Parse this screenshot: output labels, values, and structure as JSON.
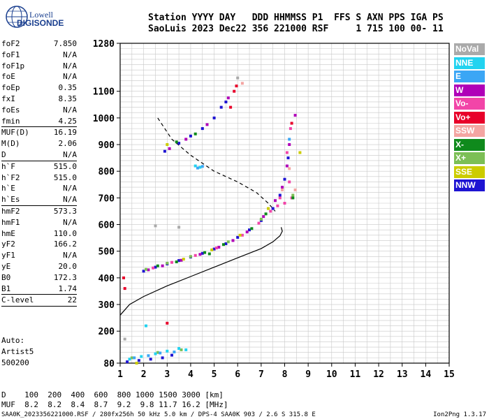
{
  "logo": {
    "line1": "Lowell",
    "line2": "DIGISONDE"
  },
  "header": {
    "row1": "Station YYYY DAY   DDD HHMMSS P1  FFS S AXN PPS IGA PS",
    "row2": "SaoLuis 2023 Dec22 356 221000 RSF     1 715 100 00- 11"
  },
  "params_groups": [
    [
      [
        "foF2",
        "7.850"
      ],
      [
        "foF1",
        "N/A"
      ],
      [
        "foF1p",
        "N/A"
      ],
      [
        "foE",
        "N/A"
      ],
      [
        "foEp",
        "0.35"
      ],
      [
        "fxI",
        "8.35"
      ],
      [
        "foEs",
        "N/A"
      ],
      [
        "fmin",
        "4.25"
      ]
    ],
    [
      [
        "MUF(D)",
        "16.19"
      ],
      [
        "M(D)",
        "2.06"
      ],
      [
        "D",
        "N/A"
      ]
    ],
    [
      [
        "h`F",
        "515.0"
      ],
      [
        "h`F2",
        "515.0"
      ],
      [
        "h`E",
        "N/A"
      ],
      [
        "h`Es",
        "N/A"
      ]
    ],
    [
      [
        "hmF2",
        "573.3"
      ],
      [
        "hmF1",
        "N/A"
      ],
      [
        "hmE",
        "110.0"
      ],
      [
        "yF2",
        "166.2"
      ],
      [
        "yF1",
        "N/A"
      ],
      [
        "yE",
        "20.0"
      ],
      [
        "B0",
        "172.3"
      ],
      [
        "B1",
        "1.74"
      ]
    ],
    [
      [
        "C-level",
        "22"
      ]
    ]
  ],
  "auto": [
    "Auto:",
    "Artist5",
    "500200"
  ],
  "legend": [
    {
      "label": "NoVal",
      "color": "#aaaaaa"
    },
    {
      "label": "NNE",
      "color": "#22d3f0"
    },
    {
      "label": "E",
      "color": "#3ba6f5"
    },
    {
      "label": "W",
      "color": "#b000b8"
    },
    {
      "label": "Vo-",
      "color": "#f245a8"
    },
    {
      "label": "Vo+",
      "color": "#e8002a"
    },
    {
      "label": "SSW",
      "color": "#f4a5a2"
    },
    {
      "label": "X-",
      "color": "#0f8a1c"
    },
    {
      "label": "X+",
      "color": "#7cbf55"
    },
    {
      "label": "SSE",
      "color": "#cccc00"
    },
    {
      "label": "NNW",
      "color": "#1e14d2"
    }
  ],
  "bottom": {
    "row1": "D    100  200  400  600  800 1000 1500 3000 [km]",
    "row2": "MUF  8.2  8.2  8.4  8.7  9.2  9.8 11.7 16.2 [MHz]"
  },
  "footer": "SAA0K_2023356221000.RSF / 280fx256h 50 kHz 5.0 km / DPS-4 SAA0K 903 / 2.6 S 315.8 E",
  "version": "Ion2Png 1.3.17",
  "chart_data": {
    "type": "scatter",
    "xlim": [
      1,
      15
    ],
    "ylim": [
      80,
      1280
    ],
    "x_ticks": [
      1,
      2,
      3,
      4,
      5,
      6,
      7,
      8,
      9,
      10,
      11,
      12,
      13,
      14,
      15
    ],
    "y_ticks": [
      80,
      200,
      300,
      400,
      500,
      600,
      700,
      800,
      900,
      1000,
      1100,
      1280
    ],
    "grid": true,
    "series": [
      {
        "color": "#1e14d2",
        "points": [
          [
            2.0,
            425
          ],
          [
            2.5,
            440
          ],
          [
            3.0,
            452
          ],
          [
            3.5,
            465
          ],
          [
            4.0,
            478
          ],
          [
            4.5,
            492
          ],
          [
            5.0,
            508
          ],
          [
            5.5,
            528
          ],
          [
            6.0,
            552
          ],
          [
            6.5,
            580
          ],
          [
            7.0,
            615
          ],
          [
            7.5,
            660
          ],
          [
            7.8,
            710
          ],
          [
            8.0,
            770
          ],
          [
            8.15,
            850
          ],
          [
            2.9,
            875
          ],
          [
            3.5,
            905
          ],
          [
            4.0,
            932
          ],
          [
            4.5,
            960
          ],
          [
            5.0,
            1000
          ],
          [
            5.3,
            1040
          ],
          [
            5.5,
            1060
          ],
          [
            1.3,
            85
          ],
          [
            1.8,
            90
          ],
          [
            2.3,
            95
          ],
          [
            2.8,
            100
          ],
          [
            3.2,
            110
          ]
        ]
      },
      {
        "color": "#b000b8",
        "points": [
          [
            2.2,
            430
          ],
          [
            2.8,
            445
          ],
          [
            3.6,
            466
          ],
          [
            4.4,
            488
          ],
          [
            5.2,
            515
          ],
          [
            5.8,
            540
          ],
          [
            6.4,
            572
          ],
          [
            7.1,
            630
          ],
          [
            7.6,
            690
          ],
          [
            7.9,
            740
          ],
          [
            8.1,
            820
          ],
          [
            8.2,
            900
          ],
          [
            3.1,
            885
          ],
          [
            3.8,
            920
          ],
          [
            4.7,
            975
          ],
          [
            5.6,
            1075
          ],
          [
            8.45,
            1010
          ]
        ]
      },
      {
        "color": "#f245a8",
        "points": [
          [
            2.4,
            437
          ],
          [
            3.2,
            458
          ],
          [
            4.2,
            484
          ],
          [
            5.1,
            512
          ],
          [
            6.2,
            560
          ],
          [
            6.9,
            605
          ],
          [
            7.4,
            650
          ],
          [
            7.7,
            670
          ],
          [
            8.0,
            680
          ],
          [
            8.2,
            760
          ],
          [
            8.1,
            870
          ],
          [
            8.25,
            960
          ],
          [
            7.8,
            700
          ],
          [
            8.3,
            700
          ]
        ]
      },
      {
        "color": "#0f8a1c",
        "points": [
          [
            2.6,
            445
          ],
          [
            3.4,
            460
          ],
          [
            4.6,
            495
          ],
          [
            5.4,
            525
          ],
          [
            6.6,
            585
          ],
          [
            7.2,
            640
          ],
          [
            3.4,
            910
          ],
          [
            4.2,
            940
          ],
          [
            8.35,
            700
          ],
          [
            4.8,
            490
          ]
        ]
      },
      {
        "color": "#7cbf55",
        "points": [
          [
            2.1,
            432
          ],
          [
            3.0,
            455
          ],
          [
            4.0,
            480
          ],
          [
            5.6,
            535
          ],
          [
            7.0,
            620
          ],
          [
            8.35,
            710
          ],
          [
            1.5,
            100
          ],
          [
            2.6,
            120
          ],
          [
            3.6,
            130
          ]
        ]
      },
      {
        "color": "#cccc00",
        "points": [
          [
            3.7,
            470
          ],
          [
            4.9,
            505
          ],
          [
            6.1,
            560
          ],
          [
            7.3,
            660
          ],
          [
            8.65,
            870
          ],
          [
            3.0,
            900
          ],
          [
            1.7,
            80
          ]
        ]
      },
      {
        "color": "#22d3f0",
        "points": [
          [
            1.4,
            95
          ],
          [
            1.9,
            105
          ],
          [
            2.5,
            115
          ],
          [
            3.0,
            125
          ],
          [
            3.5,
            135
          ],
          [
            3.8,
            130
          ],
          [
            4.2,
            820
          ],
          [
            4.4,
            815
          ],
          [
            2.1,
            220
          ]
        ]
      },
      {
        "color": "#3ba6f5",
        "points": [
          [
            1.6,
            100
          ],
          [
            2.2,
            108
          ],
          [
            2.7,
            118
          ],
          [
            3.3,
            122
          ],
          [
            4.3,
            812
          ],
          [
            4.5,
            818
          ],
          [
            8.2,
            920
          ]
        ]
      },
      {
        "color": "#e8002a",
        "points": [
          [
            1.2,
            360
          ],
          [
            1.15,
            400
          ],
          [
            5.85,
            1100
          ],
          [
            5.95,
            1120
          ],
          [
            3.0,
            230
          ],
          [
            8.3,
            980
          ],
          [
            5.7,
            1040
          ]
        ]
      },
      {
        "color": "#f4a5a2",
        "points": [
          [
            7.9,
            730
          ],
          [
            8.2,
            810
          ],
          [
            8.45,
            730
          ],
          [
            6.2,
            1130
          ]
        ]
      },
      {
        "color": "#aaaaaa",
        "points": [
          [
            1.2,
            170
          ],
          [
            3.5,
            590
          ],
          [
            6.0,
            1150
          ],
          [
            2.5,
            595
          ]
        ]
      }
    ],
    "profile_solid": [
      [
        1.0,
        260
      ],
      [
        1.4,
        300
      ],
      [
        2.0,
        330
      ],
      [
        3.0,
        370
      ],
      [
        4.0,
        405
      ],
      [
        5.0,
        440
      ],
      [
        6.0,
        475
      ],
      [
        7.0,
        510
      ],
      [
        7.5,
        535
      ],
      [
        7.8,
        558
      ],
      [
        7.9,
        575
      ],
      [
        7.85,
        590
      ]
    ],
    "trace_dashed": [
      [
        2.6,
        1000
      ],
      [
        3.2,
        920
      ],
      [
        4.0,
        860
      ],
      [
        5.0,
        800
      ],
      [
        6.0,
        760
      ],
      [
        6.8,
        720
      ],
      [
        7.3,
        680
      ],
      [
        7.6,
        650
      ]
    ]
  }
}
